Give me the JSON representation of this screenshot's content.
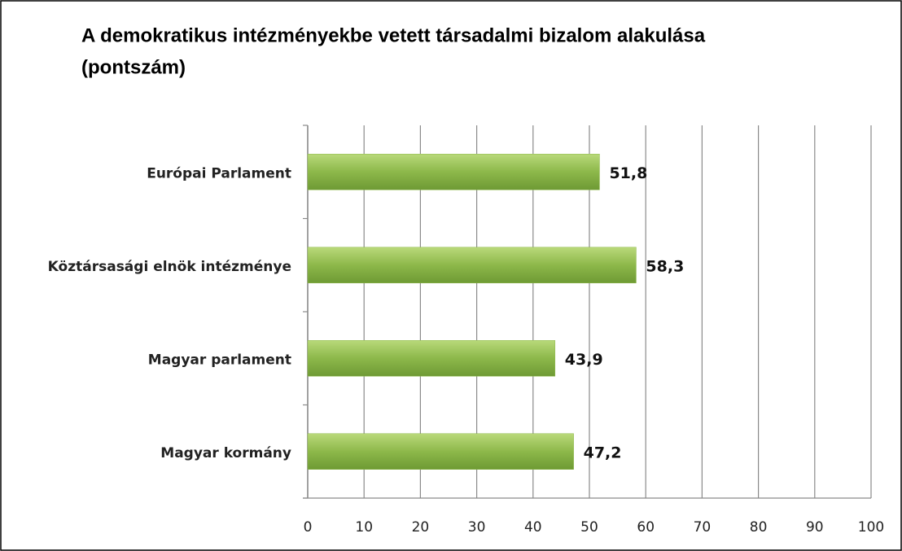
{
  "chart_data": {
    "type": "barh",
    "title": "A demokratikus intézményekbe vetett társadalmi bizalom alakulása",
    "subtitle": "(pontszám)",
    "categories": [
      "Európai Parlament",
      "Köztársasági elnök intézménye",
      "Magyar parlament",
      "Magyar kormány"
    ],
    "values": [
      51.8,
      58.3,
      43.9,
      47.2
    ],
    "value_labels": [
      "51,8",
      "58,3",
      "43,9",
      "47,2"
    ],
    "color": "#8db84a",
    "xlim": [
      0,
      100
    ],
    "xticks": [
      0,
      10,
      20,
      30,
      40,
      50,
      60,
      70,
      80,
      90,
      100
    ],
    "grid": true
  }
}
